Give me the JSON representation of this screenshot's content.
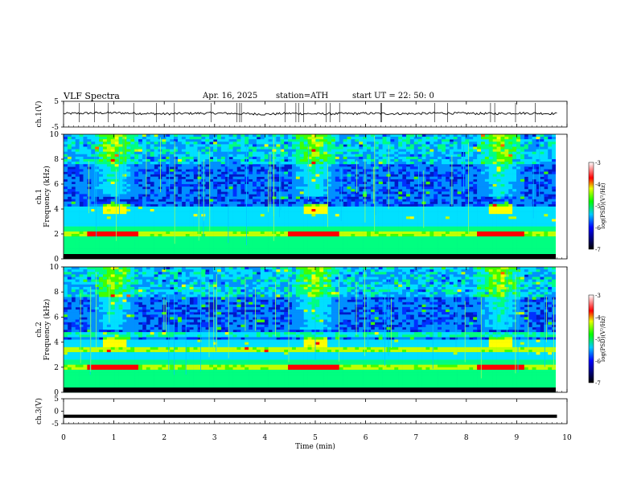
{
  "header": {
    "title": "VLF  Spectra",
    "date": "Apr. 16, 2025",
    "station": "station=ATH",
    "start": "start  UT  =   22: 50: 0"
  },
  "chart_data": [
    {
      "type": "line",
      "panel": "ch1-voltage",
      "ylabel": "ch.1(V)",
      "ylim": [
        -5,
        5
      ],
      "yticks": [
        5,
        -5
      ],
      "x": [
        0,
        0.5,
        1,
        1.5,
        2,
        2.5,
        3,
        3.5,
        4,
        4.5,
        5,
        5.5,
        6,
        6.5,
        7,
        7.5,
        8,
        8.5,
        9,
        9.5,
        9.8
      ],
      "y": [
        0.2,
        0.4,
        0.5,
        0.3,
        0.1,
        0.3,
        0.4,
        0.2,
        0.0,
        0.3,
        0.1,
        0.2,
        0.3,
        0.2,
        0.2,
        0.4,
        0.3,
        0.2,
        0.4,
        0.3,
        0.2
      ]
    },
    {
      "type": "heatmap",
      "panel": "ch1-spectrogram",
      "ylabel_line1": "ch.1",
      "ylabel_line2": "Frequency  (kHz)",
      "ylim": [
        0,
        10
      ],
      "yticks": [
        0,
        2,
        4,
        6,
        8,
        10
      ],
      "colorbar_label": "log(PSD)(V²/Hz)",
      "colorbar_range": [
        -7,
        -3
      ],
      "colorbar_ticks": [
        -3,
        -4,
        -5,
        -6,
        -7
      ],
      "bursts_min": [
        1,
        5,
        8.7
      ]
    },
    {
      "type": "heatmap",
      "panel": "ch2-spectrogram",
      "ylabel_line1": "ch.2",
      "ylabel_line2": "Frequency  (kHz)",
      "ylim": [
        0,
        10
      ],
      "yticks": [
        0,
        2,
        4,
        6,
        8,
        10
      ],
      "colorbar_label": "log(PSD)(V²/Hz)",
      "colorbar_range": [
        -7,
        -3
      ],
      "colorbar_ticks": [
        -3,
        -4,
        -5,
        -6,
        -7
      ],
      "bursts_min": [
        1,
        5,
        8.7
      ]
    },
    {
      "type": "line",
      "panel": "ch3-voltage",
      "ylabel": "ch.3(V)",
      "ylim": [
        -5,
        5
      ],
      "yticks": [
        5,
        0,
        -5
      ],
      "x": [
        0,
        9.8
      ],
      "y": [
        -2,
        -2
      ]
    }
  ],
  "xaxis": {
    "label": "Time  (min)",
    "xlim": [
      0,
      10
    ],
    "ticks": [
      "0",
      "1",
      "2",
      "3",
      "4",
      "5",
      "6",
      "7",
      "8",
      "9",
      "10"
    ]
  }
}
